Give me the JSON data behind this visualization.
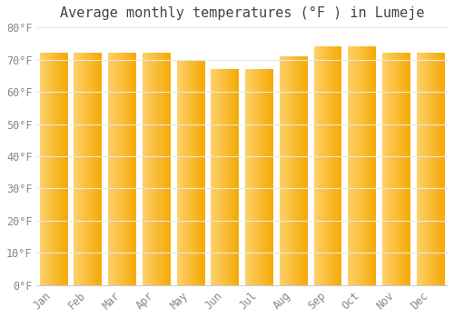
{
  "title": "Average monthly temperatures (°F ) in Lumeje",
  "months": [
    "Jan",
    "Feb",
    "Mar",
    "Apr",
    "May",
    "Jun",
    "Jul",
    "Aug",
    "Sep",
    "Oct",
    "Nov",
    "Dec"
  ],
  "values": [
    72,
    72,
    72,
    72,
    70,
    67,
    67,
    71,
    74,
    74,
    72,
    72
  ],
  "bar_color_left": "#FDD06A",
  "bar_color_right": "#F5A800",
  "background_color": "#FFFFFF",
  "plot_bg_color": "#FFFFFF",
  "grid_color": "#E8E8E8",
  "text_color": "#888888",
  "title_color": "#444444",
  "ylim": [
    0,
    80
  ],
  "ytick_step": 10,
  "title_fontsize": 11,
  "tick_fontsize": 8.5,
  "bar_width": 0.82
}
